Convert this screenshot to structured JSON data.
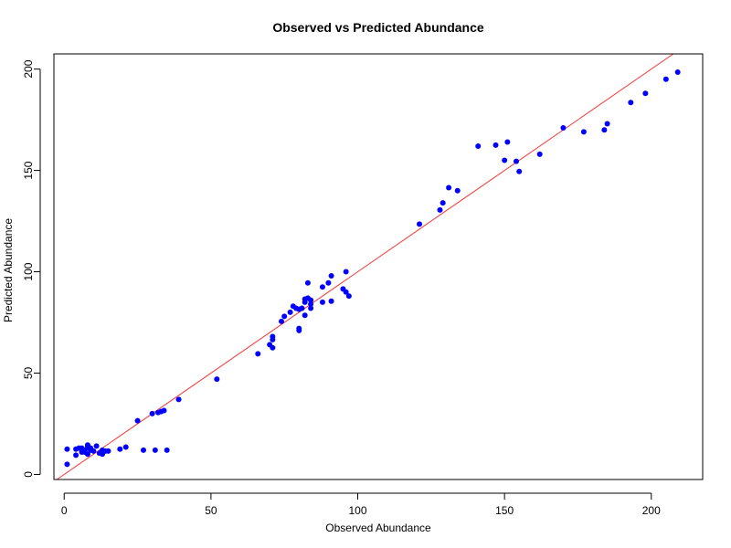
{
  "chart_data": {
    "type": "scatter",
    "title": "Observed vs Predicted Abundance",
    "xlabel": "Observed Abundance",
    "ylabel": "Predicted Abundance",
    "xlim": [
      -3.5,
      217.5
    ],
    "ylim": [
      -2.5,
      207.5
    ],
    "xticks": [
      0,
      50,
      100,
      150,
      200
    ],
    "yticks": [
      0,
      50,
      100,
      150,
      200
    ],
    "grid": false,
    "point_color": "#0000ff",
    "reference_line": {
      "label": "",
      "color": "#ff3333",
      "slope": 1,
      "intercept": 0
    },
    "x": [
      1,
      1,
      4,
      4,
      5,
      6,
      6,
      7,
      7,
      8,
      8,
      8,
      8,
      9,
      9,
      10,
      11,
      12,
      13,
      13,
      14,
      15,
      19,
      21,
      25,
      27,
      30,
      31,
      32,
      33,
      34,
      35,
      39,
      52,
      66,
      70,
      71,
      71,
      71,
      74,
      75,
      77,
      78,
      79,
      80,
      80,
      80,
      81,
      82,
      82,
      82,
      83,
      83,
      84,
      84,
      84,
      88,
      88,
      90,
      91,
      91,
      95,
      96,
      96,
      97,
      121,
      128,
      129,
      131,
      134,
      141,
      147,
      150,
      151,
      154,
      155,
      162,
      170,
      177,
      184,
      185,
      193,
      198,
      205,
      209
    ],
    "y": [
      5,
      12.5,
      9.5,
      12.5,
      13,
      11,
      13,
      12,
      11,
      10,
      13,
      14.5,
      14,
      12,
      13,
      11.5,
      14,
      10.5,
      10,
      12,
      11.5,
      11.5,
      12.5,
      13.5,
      26.5,
      12,
      30,
      12,
      30.5,
      31,
      31.5,
      12,
      37,
      47,
      59.5,
      64,
      62.5,
      66.5,
      68,
      75.5,
      78,
      80,
      83,
      82,
      81.5,
      72,
      71,
      82,
      85,
      86.5,
      78.5,
      87,
      94.5,
      82,
      84,
      86,
      92.5,
      85,
      94.5,
      98,
      85.5,
      91.5,
      100,
      90,
      88,
      123.5,
      130.5,
      134,
      141.5,
      140,
      162,
      162.5,
      155,
      164,
      154.5,
      149.5,
      158,
      171,
      169,
      170,
      173,
      183.5,
      188,
      195,
      198.5
    ]
  }
}
